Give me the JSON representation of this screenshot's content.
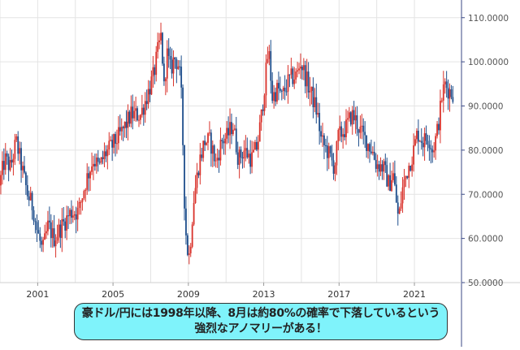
{
  "caption": {
    "line1": "豪ドル/円には1998年以降、8月は約80%の確率で下落しているという",
    "line2": "強烈なアノマリーがある！"
  },
  "colors": {
    "up": "#d9322b",
    "down": "#1e4e8c",
    "grid": "#e4e4e4",
    "axis": "#3b4a86",
    "caption_bg": "#7ff3fb"
  },
  "chart_data": {
    "type": "candlestick",
    "title": "",
    "xlabel": "",
    "ylabel": "",
    "xlim": [
      1999.0,
      2023.5
    ],
    "ylim": [
      50,
      114
    ],
    "grid": true,
    "y_ticks": [
      {
        "value": 50,
        "label": "50.0000"
      },
      {
        "value": 60,
        "label": "60.0000"
      },
      {
        "value": 70,
        "label": "70.0000"
      },
      {
        "value": 80,
        "label": "80.0000"
      },
      {
        "value": 90,
        "label": "90.0000"
      },
      {
        "value": 100,
        "label": "100.0000"
      },
      {
        "value": 110,
        "label": "110.0000"
      }
    ],
    "x_ticks": [
      {
        "value": 2001,
        "label": "2001"
      },
      {
        "value": 2005,
        "label": "2005"
      },
      {
        "value": 2009,
        "label": "2009"
      },
      {
        "value": 2013,
        "label": "2013"
      },
      {
        "value": 2017,
        "label": "2017"
      },
      {
        "value": 2021,
        "label": "2021"
      }
    ],
    "x_grid": [
      1999.0,
      2001,
      2003,
      2005,
      2007,
      2009,
      2011,
      2013,
      2015,
      2017,
      2019,
      2021
    ],
    "path": [
      [
        1999.0,
        72
      ],
      [
        1999.3,
        78
      ],
      [
        1999.6,
        76
      ],
      [
        1999.9,
        82
      ],
      [
        2000.2,
        76
      ],
      [
        2000.5,
        70
      ],
      [
        2000.8,
        67
      ],
      [
        2001.0,
        62
      ],
      [
        2001.3,
        57
      ],
      [
        2001.6,
        63
      ],
      [
        2001.9,
        60
      ],
      [
        2002.2,
        62
      ],
      [
        2002.5,
        64
      ],
      [
        2002.8,
        66
      ],
      [
        2003.2,
        66
      ],
      [
        2003.6,
        73
      ],
      [
        2004.0,
        78
      ],
      [
        2004.3,
        76
      ],
      [
        2004.6,
        79
      ],
      [
        2005.0,
        81
      ],
      [
        2005.5,
        84
      ],
      [
        2006.0,
        88
      ],
      [
        2006.5,
        88
      ],
      [
        2006.9,
        93
      ],
      [
        2007.2,
        97
      ],
      [
        2007.4,
        102
      ],
      [
        2007.6,
        106
      ],
      [
        2007.75,
        94
      ],
      [
        2007.9,
        102
      ],
      [
        2008.1,
        98
      ],
      [
        2008.3,
        101
      ],
      [
        2008.55,
        99
      ],
      [
        2008.7,
        90
      ],
      [
        2008.82,
        70
      ],
      [
        2008.95,
        58
      ],
      [
        2009.1,
        56
      ],
      [
        2009.3,
        68
      ],
      [
        2009.6,
        77
      ],
      [
        2009.9,
        82
      ],
      [
        2010.2,
        82
      ],
      [
        2010.5,
        77
      ],
      [
        2010.8,
        82
      ],
      [
        2011.1,
        83
      ],
      [
        2011.4,
        86
      ],
      [
        2011.7,
        78
      ],
      [
        2012.0,
        80
      ],
      [
        2012.4,
        78
      ],
      [
        2012.7,
        81
      ],
      [
        2012.9,
        87
      ],
      [
        2013.1,
        95
      ],
      [
        2013.3,
        103
      ],
      [
        2013.5,
        92
      ],
      [
        2013.8,
        94
      ],
      [
        2014.0,
        92
      ],
      [
        2014.4,
        96
      ],
      [
        2014.8,
        97
      ],
      [
        2015.0,
        100
      ],
      [
        2015.3,
        96
      ],
      [
        2015.7,
        91
      ],
      [
        2015.9,
        88
      ],
      [
        2016.1,
        82
      ],
      [
        2016.4,
        80
      ],
      [
        2016.8,
        76
      ],
      [
        2017.0,
        83
      ],
      [
        2017.4,
        85
      ],
      [
        2017.7,
        88
      ],
      [
        2017.9,
        87
      ],
      [
        2018.2,
        84
      ],
      [
        2018.5,
        82
      ],
      [
        2018.8,
        80
      ],
      [
        2019.0,
        77
      ],
      [
        2019.4,
        76
      ],
      [
        2019.7,
        72
      ],
      [
        2019.9,
        75
      ],
      [
        2020.2,
        64
      ],
      [
        2020.4,
        71
      ],
      [
        2020.7,
        76
      ],
      [
        2020.95,
        79
      ],
      [
        2021.2,
        84
      ],
      [
        2021.5,
        82
      ],
      [
        2021.8,
        83
      ],
      [
        2022.0,
        80
      ],
      [
        2022.2,
        83
      ],
      [
        2022.35,
        87
      ],
      [
        2022.5,
        92
      ],
      [
        2022.65,
        95
      ],
      [
        2022.8,
        94
      ],
      [
        2023.0,
        93
      ]
    ]
  }
}
